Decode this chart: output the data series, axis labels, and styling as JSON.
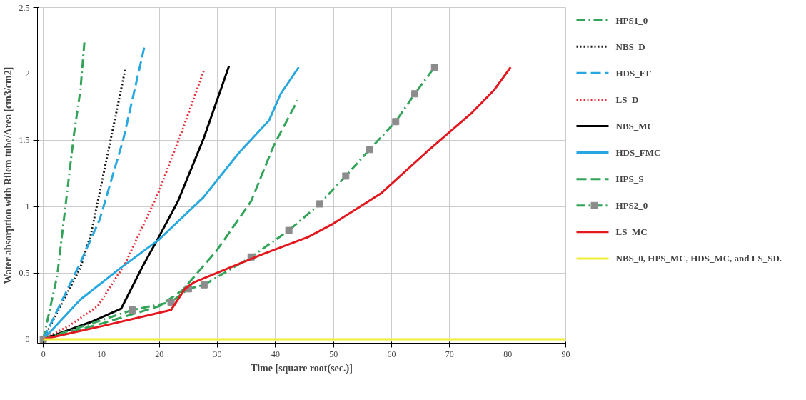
{
  "chart_data": {
    "type": "line",
    "xlabel": "Time [square root(sec.)]",
    "ylabel": "Water absorption with Rilem tube/Area [cm3/cm2]",
    "xlim": [
      -1,
      90
    ],
    "ylim": [
      -0.03,
      2.5
    ],
    "xticks": [
      0,
      10,
      20,
      30,
      40,
      50,
      60,
      70,
      80,
      90
    ],
    "yticks": [
      0,
      0.5,
      1,
      1.5,
      2,
      2.5
    ],
    "grid": true,
    "legend": "right",
    "marker": "none",
    "series": [
      {
        "name": "HPS1_0",
        "color": "#33a35a",
        "line_style": "dashdot",
        "x": [
          0,
          2.4,
          4,
          5.3,
          6.4,
          7.1
        ],
        "values": [
          0,
          0.48,
          1.07,
          1.55,
          1.88,
          2.25
        ]
      },
      {
        "name": "NBS_D",
        "color": "#1a1a1a",
        "line_style": "dotted",
        "x": [
          0,
          6.4,
          8.2,
          10.2,
          12.2,
          14.1
        ],
        "values": [
          0,
          0.54,
          0.79,
          1.21,
          1.63,
          2.03
        ]
      },
      {
        "name": "HDS_EF",
        "color": "#29a8e0",
        "line_style": "dashed",
        "x": [
          0,
          6.3,
          9.7,
          13.8,
          17.5
        ],
        "values": [
          0,
          0.57,
          0.9,
          1.51,
          2.22
        ]
      },
      {
        "name": "LS_D",
        "color": "#e8303a",
        "line_style": "dotted",
        "x": [
          0,
          4.4,
          9.4,
          14.1,
          19.7,
          24,
          27.7
        ],
        "values": [
          0,
          0.1,
          0.25,
          0.57,
          1.09,
          1.58,
          2.03
        ]
      },
      {
        "name": "NBS_MC",
        "color": "#000000",
        "line_style": "solid",
        "x": [
          0,
          8.2,
          13.4,
          17,
          19.9,
          23.2,
          27.6,
          32
        ],
        "values": [
          0,
          0.13,
          0.23,
          0.54,
          0.77,
          1.04,
          1.51,
          2.06
        ]
      },
      {
        "name": "HDS_FMC",
        "color": "#29a8e0",
        "line_style": "solid",
        "x": [
          0,
          6.4,
          13.4,
          19.9,
          27.6,
          33.8,
          38.9,
          40.9,
          44
        ],
        "values": [
          0,
          0.3,
          0.54,
          0.75,
          1.07,
          1.41,
          1.65,
          1.85,
          2.05
        ]
      },
      {
        "name": "HPS_S",
        "color": "#33a35a",
        "line_style": "dashed",
        "x": [
          0,
          10.2,
          20,
          24,
          29.9,
          35.8,
          39.7,
          43.8
        ],
        "values": [
          0,
          0.12,
          0.25,
          0.37,
          0.67,
          1.04,
          1.46,
          1.8
        ]
      },
      {
        "name": "HPS2_0",
        "color": "#33a35a",
        "line_style": "dashdot",
        "marker": "square",
        "colors": [
          "#8c8c8c",
          "#8c8c8c",
          "#8c8c8c",
          "#8c8c8c",
          "#8c8c8c",
          "#8c8c8c",
          "#8c8c8c",
          "#8c8c8c",
          "#8c8c8c",
          "#8c8c8c",
          "#8c8c8c",
          "#8c8c8c",
          "#8c8c8c"
        ],
        "x": [
          0,
          15.3,
          22,
          25,
          27.7,
          35.8,
          42.3,
          47.6,
          52.1,
          56.2,
          60.7,
          64,
          67.4
        ],
        "values": [
          0,
          0.22,
          0.28,
          0.38,
          0.41,
          0.62,
          0.82,
          1.02,
          1.23,
          1.43,
          1.64,
          1.85,
          2.05
        ]
      },
      {
        "name": "LS_MC",
        "color": "#e3171e",
        "line_style": "solid",
        "x": [
          0,
          10.2,
          22,
          24.4,
          26,
          29.9,
          37.7,
          45.6,
          49.9,
          58.2,
          66,
          73.9,
          77.7,
          80.5
        ],
        "values": [
          0,
          0.1,
          0.22,
          0.38,
          0.43,
          0.5,
          0.64,
          0.77,
          0.87,
          1.1,
          1.41,
          1.71,
          1.88,
          2.05
        ]
      },
      {
        "name": "NBS_0, HPS_MC, HDS_MC, and LS_SD.",
        "color": "#f2ef3a",
        "line_style": "solid",
        "x": [
          0,
          90
        ],
        "values": [
          0,
          0
        ]
      }
    ]
  }
}
